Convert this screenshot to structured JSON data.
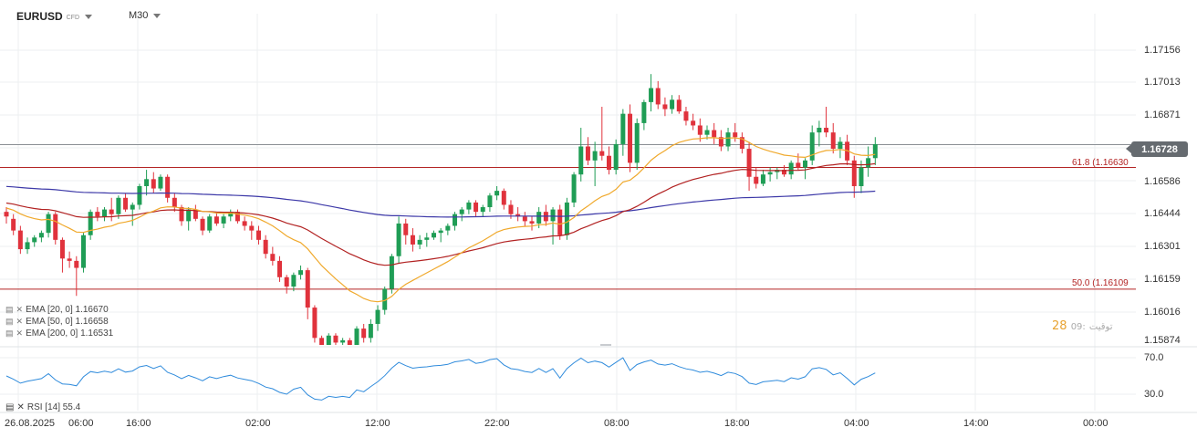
{
  "header": {
    "symbol": "EURUSD",
    "symbol_type": "CFD",
    "timeframe": "M30"
  },
  "price": {
    "current": "1.16728",
    "y_labels": [
      "1.17156",
      "1.17013",
      "1.16871",
      "1.16728",
      "1.16586",
      "1.16444",
      "1.16301",
      "1.16159",
      "1.16016",
      "1.15874"
    ]
  },
  "fibonacci": [
    {
      "label": "61.8 (1.16630",
      "value": 1.1663
    },
    {
      "label": "50.0 (1.16109",
      "value": 1.16109
    }
  ],
  "indicators": [
    {
      "label": "EMA  [20,  0]  1.16670",
      "color": "#f0a92c"
    },
    {
      "label": "EMA  [50,  0]  1.16658",
      "color": "#b22222"
    },
    {
      "label": "EMA  [200,  0]  1.16531",
      "color": "#3d39a8"
    }
  ],
  "rsi": {
    "label": "RSI  [14]  55.4",
    "levels": [
      "70.0",
      "30.0"
    ],
    "color": "#2f8bdc"
  },
  "x_labels": [
    "26.08.2025",
    "06:00",
    "16:00",
    "02:00",
    "12:00",
    "22:00",
    "08:00",
    "18:00",
    "04:00",
    "14:00",
    "00:00"
  ],
  "overlay_text": {
    "big": "28",
    "gray": "09:",
    "rest": "توقيت"
  },
  "colors": {
    "bull": "#1f9d55",
    "bear": "#e0323c",
    "grid": "#eceff1",
    "fib": "#b32424",
    "current_line": "#8a8f94"
  },
  "chart_data": {
    "type": "candlestick",
    "ylim": [
      1.1587,
      1.1723
    ],
    "candles_ohlc": [
      [
        1.1644,
        1.1646,
        1.1639,
        1.1642
      ],
      [
        1.1641,
        1.1643,
        1.1634,
        1.1636
      ],
      [
        1.1636,
        1.1638,
        1.1626,
        1.1628
      ],
      [
        1.1628,
        1.1633,
        1.1626,
        1.1631
      ],
      [
        1.1631,
        1.1634,
        1.1629,
        1.1633
      ],
      [
        1.1633,
        1.1636,
        1.1631,
        1.1635
      ],
      [
        1.1635,
        1.1644,
        1.1633,
        1.1643
      ],
      [
        1.1643,
        1.1644,
        1.163,
        1.1632
      ],
      [
        1.1632,
        1.1633,
        1.1618,
        1.1624
      ],
      [
        1.1624,
        1.1627,
        1.162,
        1.1623
      ],
      [
        1.1623,
        1.1625,
        1.1608,
        1.162
      ],
      [
        1.162,
        1.1635,
        1.1618,
        1.1634
      ],
      [
        1.1634,
        1.1645,
        1.1632,
        1.1644
      ],
      [
        1.1644,
        1.1646,
        1.164,
        1.1642
      ],
      [
        1.1642,
        1.1646,
        1.164,
        1.1645
      ],
      [
        1.1645,
        1.165,
        1.164,
        1.1643
      ],
      [
        1.1643,
        1.1651,
        1.1641,
        1.165
      ],
      [
        1.165,
        1.1652,
        1.1644,
        1.1645
      ],
      [
        1.1645,
        1.1648,
        1.1638,
        1.1647
      ],
      [
        1.1647,
        1.1656,
        1.1645,
        1.1655
      ],
      [
        1.1655,
        1.1662,
        1.1651,
        1.1658
      ],
      [
        1.1658,
        1.1661,
        1.1652,
        1.1654
      ],
      [
        1.1654,
        1.166,
        1.1653,
        1.1659
      ],
      [
        1.1659,
        1.166,
        1.1648,
        1.165
      ],
      [
        1.165,
        1.1652,
        1.1644,
        1.1646
      ],
      [
        1.1646,
        1.1647,
        1.1638,
        1.164
      ],
      [
        1.164,
        1.1646,
        1.1636,
        1.1645
      ],
      [
        1.1645,
        1.1647,
        1.164,
        1.1641
      ],
      [
        1.1641,
        1.1642,
        1.1634,
        1.1636
      ],
      [
        1.1636,
        1.1643,
        1.1635,
        1.1642
      ],
      [
        1.1642,
        1.1644,
        1.1638,
        1.1639
      ],
      [
        1.1639,
        1.1643,
        1.1637,
        1.1642
      ],
      [
        1.1642,
        1.1645,
        1.164,
        1.1644
      ],
      [
        1.1644,
        1.1645,
        1.1639,
        1.164
      ],
      [
        1.164,
        1.1642,
        1.1636,
        1.1638
      ],
      [
        1.1638,
        1.164,
        1.1632,
        1.1636
      ],
      [
        1.1636,
        1.1638,
        1.163,
        1.1632
      ],
      [
        1.1632,
        1.1634,
        1.1624,
        1.1626
      ],
      [
        1.1626,
        1.1629,
        1.1621,
        1.1623
      ],
      [
        1.1623,
        1.1625,
        1.1614,
        1.1616
      ],
      [
        1.1616,
        1.1617,
        1.1609,
        1.1612
      ],
      [
        1.1612,
        1.1618,
        1.161,
        1.1617
      ],
      [
        1.1617,
        1.1621,
        1.1615,
        1.1619
      ],
      [
        1.1619,
        1.162,
        1.1598,
        1.1603
      ],
      [
        1.1603,
        1.1604,
        1.1588,
        1.159
      ],
      [
        1.159,
        1.1591,
        1.1585,
        1.1587
      ],
      [
        1.1587,
        1.1592,
        1.1585,
        1.1591
      ],
      [
        1.1591,
        1.1592,
        1.1585,
        1.1588
      ],
      [
        1.1588,
        1.159,
        1.1585,
        1.1589
      ],
      [
        1.1589,
        1.159,
        1.1584,
        1.1586
      ],
      [
        1.1586,
        1.1595,
        1.1585,
        1.1594
      ],
      [
        1.1594,
        1.1596,
        1.1588,
        1.159
      ],
      [
        1.159,
        1.1598,
        1.1588,
        1.1596
      ],
      [
        1.1596,
        1.1604,
        1.1593,
        1.1602
      ],
      [
        1.1602,
        1.1612,
        1.16,
        1.1611
      ],
      [
        1.1611,
        1.1626,
        1.1609,
        1.1625
      ],
      [
        1.1625,
        1.1642,
        1.1622,
        1.1639
      ],
      [
        1.1639,
        1.1641,
        1.163,
        1.1634
      ],
      [
        1.1634,
        1.1637,
        1.1627,
        1.163
      ],
      [
        1.163,
        1.1634,
        1.1628,
        1.1632
      ],
      [
        1.1632,
        1.1635,
        1.1629,
        1.1633
      ],
      [
        1.1633,
        1.1636,
        1.1632,
        1.1635
      ],
      [
        1.1635,
        1.1637,
        1.1631,
        1.1636
      ],
      [
        1.1636,
        1.1639,
        1.1634,
        1.1638
      ],
      [
        1.1638,
        1.1644,
        1.1636,
        1.1643
      ],
      [
        1.1643,
        1.1646,
        1.164,
        1.1645
      ],
      [
        1.1645,
        1.1649,
        1.1643,
        1.1648
      ],
      [
        1.1648,
        1.1649,
        1.1642,
        1.1644
      ],
      [
        1.1644,
        1.1647,
        1.1642,
        1.1646
      ],
      [
        1.1646,
        1.1652,
        1.1644,
        1.1651
      ],
      [
        1.1651,
        1.1655,
        1.1649,
        1.1653
      ],
      [
        1.1653,
        1.1654,
        1.1645,
        1.1647
      ],
      [
        1.1647,
        1.1649,
        1.1641,
        1.1643
      ],
      [
        1.1643,
        1.1646,
        1.164,
        1.1642
      ],
      [
        1.1642,
        1.1644,
        1.1638,
        1.164
      ],
      [
        1.164,
        1.1642,
        1.1636,
        1.1639
      ],
      [
        1.1639,
        1.1646,
        1.1637,
        1.1644
      ],
      [
        1.1644,
        1.1647,
        1.1638,
        1.164
      ],
      [
        1.164,
        1.1646,
        1.163,
        1.1645
      ],
      [
        1.1645,
        1.1647,
        1.1632,
        1.1634
      ],
      [
        1.1634,
        1.165,
        1.1632,
        1.1648
      ],
      [
        1.1648,
        1.1661,
        1.1646,
        1.166
      ],
      [
        1.166,
        1.168,
        1.1657,
        1.1672
      ],
      [
        1.1672,
        1.1676,
        1.1664,
        1.1666
      ],
      [
        1.1666,
        1.1674,
        1.1655,
        1.167
      ],
      [
        1.167,
        1.1689,
        1.1666,
        1.1668
      ],
      [
        1.1668,
        1.1672,
        1.166,
        1.1662
      ],
      [
        1.1662,
        1.1675,
        1.166,
        1.1673
      ],
      [
        1.1673,
        1.1688,
        1.1668,
        1.1686
      ],
      [
        1.1686,
        1.169,
        1.1661,
        1.1665
      ],
      [
        1.1665,
        1.1684,
        1.1662,
        1.1682
      ],
      [
        1.1682,
        1.1692,
        1.1679,
        1.1691
      ],
      [
        1.1691,
        1.1703,
        1.1687,
        1.1697
      ],
      [
        1.1697,
        1.17,
        1.1688,
        1.169
      ],
      [
        1.169,
        1.1693,
        1.1685,
        1.1688
      ],
      [
        1.1688,
        1.1694,
        1.1686,
        1.1692
      ],
      [
        1.1692,
        1.1694,
        1.1686,
        1.1687
      ],
      [
        1.1687,
        1.1689,
        1.1681,
        1.1683
      ],
      [
        1.1683,
        1.1686,
        1.1679,
        1.1681
      ],
      [
        1.1681,
        1.1684,
        1.1674,
        1.1677
      ],
      [
        1.1677,
        1.1681,
        1.1675,
        1.1679
      ],
      [
        1.1679,
        1.1682,
        1.1673,
        1.1676
      ],
      [
        1.1676,
        1.1679,
        1.167,
        1.1672
      ],
      [
        1.1672,
        1.168,
        1.167,
        1.1678
      ],
      [
        1.1678,
        1.1682,
        1.1674,
        1.1676
      ],
      [
        1.1676,
        1.1678,
        1.1669,
        1.1671
      ],
      [
        1.1671,
        1.1674,
        1.1653,
        1.1659
      ],
      [
        1.1659,
        1.1663,
        1.1654,
        1.1656
      ],
      [
        1.1656,
        1.1662,
        1.1655,
        1.166
      ],
      [
        1.166,
        1.1663,
        1.1657,
        1.1661
      ],
      [
        1.1661,
        1.1663,
        1.1658,
        1.1662
      ],
      [
        1.1662,
        1.1664,
        1.1659,
        1.166
      ],
      [
        1.166,
        1.1666,
        1.1658,
        1.1665
      ],
      [
        1.1665,
        1.1669,
        1.1662,
        1.1663
      ],
      [
        1.1663,
        1.1667,
        1.1658,
        1.1666
      ],
      [
        1.1666,
        1.1681,
        1.1664,
        1.1678
      ],
      [
        1.1678,
        1.1683,
        1.1672,
        1.168
      ],
      [
        1.168,
        1.1689,
        1.1676,
        1.1678
      ],
      [
        1.1678,
        1.1682,
        1.1669,
        1.1671
      ],
      [
        1.1671,
        1.1676,
        1.1667,
        1.1674
      ],
      [
        1.1674,
        1.1677,
        1.1664,
        1.1666
      ],
      [
        1.1666,
        1.1668,
        1.165,
        1.1655
      ],
      [
        1.1655,
        1.1666,
        1.1652,
        1.1663
      ],
      [
        1.1663,
        1.1672,
        1.1659,
        1.1667
      ],
      [
        1.1667,
        1.1676,
        1.1664,
        1.1673
      ]
    ]
  }
}
